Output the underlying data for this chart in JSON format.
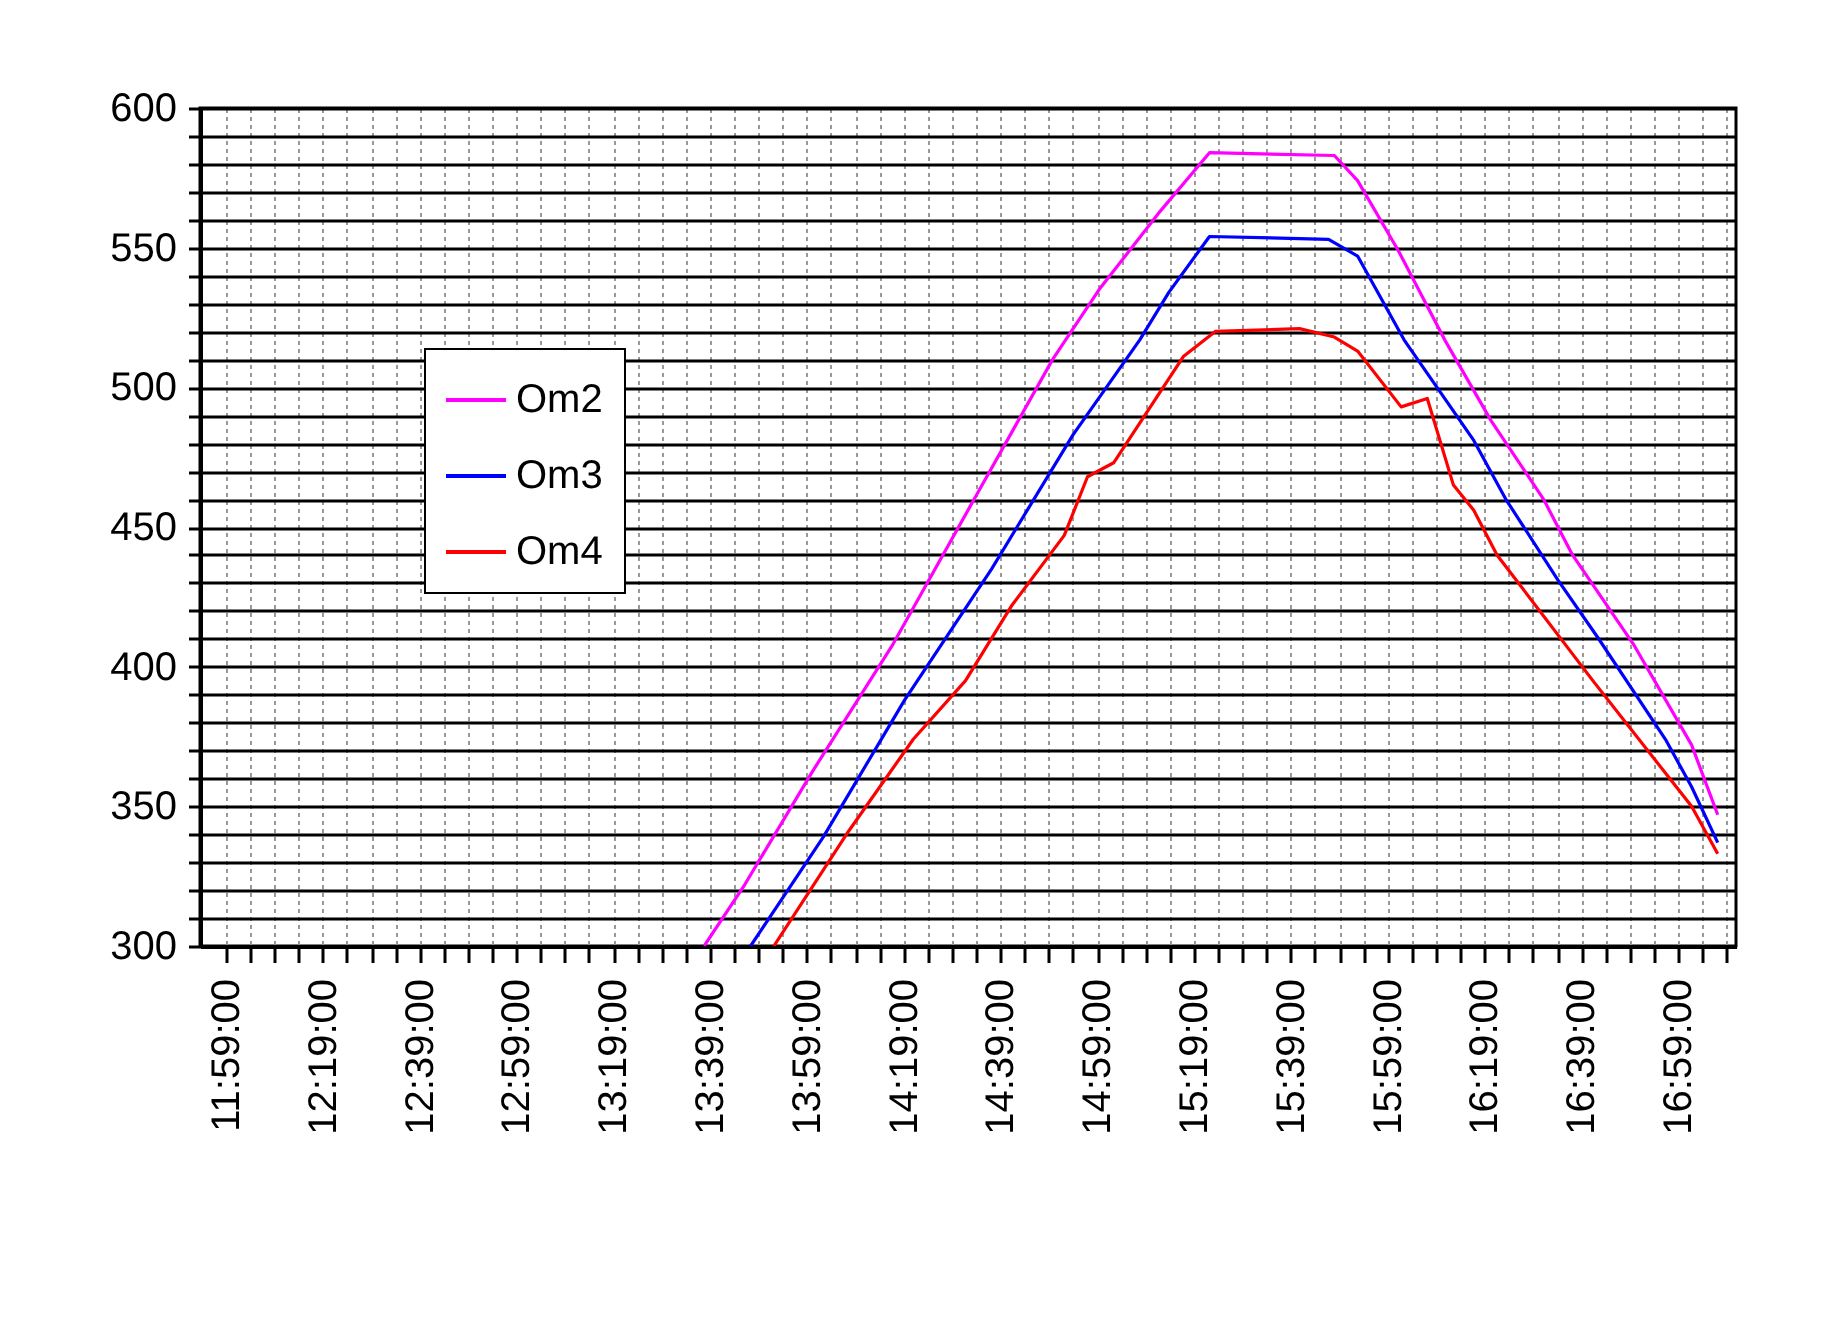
{
  "chart_data": {
    "type": "line",
    "xlim": [
      11.894,
      17.183
    ],
    "ylim": [
      300,
      600
    ],
    "xticks": [
      {
        "value": 11.9833,
        "label": "11:59:00"
      },
      {
        "value": 12.0667,
        "label": null
      },
      {
        "value": 12.15,
        "label": null
      },
      {
        "value": 12.2333,
        "label": null
      },
      {
        "value": 12.3167,
        "label": "12:19:00"
      },
      {
        "value": 12.4,
        "label": null
      },
      {
        "value": 12.4833,
        "label": null
      },
      {
        "value": 12.5667,
        "label": null
      },
      {
        "value": 12.65,
        "label": "12:39:00"
      },
      {
        "value": 12.7333,
        "label": null
      },
      {
        "value": 12.8167,
        "label": null
      },
      {
        "value": 12.9,
        "label": null
      },
      {
        "value": 12.9833,
        "label": "12:59:00"
      },
      {
        "value": 13.0667,
        "label": null
      },
      {
        "value": 13.15,
        "label": null
      },
      {
        "value": 13.2333,
        "label": null
      },
      {
        "value": 13.3167,
        "label": "13:19:00"
      },
      {
        "value": 13.4,
        "label": null
      },
      {
        "value": 13.4833,
        "label": null
      },
      {
        "value": 13.5667,
        "label": null
      },
      {
        "value": 13.65,
        "label": "13:39:00"
      },
      {
        "value": 13.7333,
        "label": null
      },
      {
        "value": 13.8167,
        "label": null
      },
      {
        "value": 13.9,
        "label": null
      },
      {
        "value": 13.9833,
        "label": "13:59:00"
      },
      {
        "value": 14.0667,
        "label": null
      },
      {
        "value": 14.15,
        "label": null
      },
      {
        "value": 14.2333,
        "label": null
      },
      {
        "value": 14.3167,
        "label": "14:19:00"
      },
      {
        "value": 14.4,
        "label": null
      },
      {
        "value": 14.4833,
        "label": null
      },
      {
        "value": 14.5667,
        "label": null
      },
      {
        "value": 14.65,
        "label": "14:39:00"
      },
      {
        "value": 14.7333,
        "label": null
      },
      {
        "value": 14.8167,
        "label": null
      },
      {
        "value": 14.9,
        "label": null
      },
      {
        "value": 14.9833,
        "label": "14:59:00"
      },
      {
        "value": 15.0667,
        "label": null
      },
      {
        "value": 15.15,
        "label": null
      },
      {
        "value": 15.2333,
        "label": null
      },
      {
        "value": 15.3167,
        "label": "15:19:00"
      },
      {
        "value": 15.4,
        "label": null
      },
      {
        "value": 15.4833,
        "label": null
      },
      {
        "value": 15.5667,
        "label": null
      },
      {
        "value": 15.65,
        "label": "15:39:00"
      },
      {
        "value": 15.7333,
        "label": null
      },
      {
        "value": 15.8167,
        "label": null
      },
      {
        "value": 15.9,
        "label": null
      },
      {
        "value": 15.9833,
        "label": "15:59:00"
      },
      {
        "value": 16.0667,
        "label": null
      },
      {
        "value": 16.15,
        "label": null
      },
      {
        "value": 16.2333,
        "label": null
      },
      {
        "value": 16.3167,
        "label": "16:19:00"
      },
      {
        "value": 16.4,
        "label": null
      },
      {
        "value": 16.4833,
        "label": null
      },
      {
        "value": 16.5667,
        "label": null
      },
      {
        "value": 16.65,
        "label": "16:39:00"
      },
      {
        "value": 16.7333,
        "label": null
      },
      {
        "value": 16.8167,
        "label": null
      },
      {
        "value": 16.9,
        "label": null
      },
      {
        "value": 16.9833,
        "label": "16:59:00"
      },
      {
        "value": 17.0667,
        "label": null
      },
      {
        "value": 17.15,
        "label": null
      }
    ],
    "yticks": [
      300,
      {
        "value": 310,
        "label": null
      },
      {
        "value": 320,
        "label": null
      },
      {
        "value": 330,
        "label": null
      },
      {
        "value": 340,
        "label": null
      },
      350,
      {
        "value": 360,
        "label": null
      },
      {
        "value": 370,
        "label": null
      },
      {
        "value": 380,
        "label": null
      },
      {
        "value": 390,
        "label": null
      },
      400,
      {
        "value": 410,
        "label": null
      },
      {
        "value": 420,
        "label": null
      },
      {
        "value": 430,
        "label": null
      },
      {
        "value": 440,
        "label": null
      },
      450,
      {
        "value": 460,
        "label": null
      },
      {
        "value": 470,
        "label": null
      },
      {
        "value": 480,
        "label": null
      },
      {
        "value": 490,
        "label": null
      },
      500,
      {
        "value": 510,
        "label": null
      },
      {
        "value": 520,
        "label": null
      },
      {
        "value": 530,
        "label": null
      },
      {
        "value": 540,
        "label": null
      },
      550,
      {
        "value": 560,
        "label": null
      },
      {
        "value": 570,
        "label": null
      },
      {
        "value": 580,
        "label": null
      },
      {
        "value": 590,
        "label": null
      },
      600
    ],
    "grid": true,
    "legend": "left",
    "marker": "none",
    "line_style": "solid",
    "series": [
      {
        "name": "Om2",
        "color": "#ff00ff",
        "x": [
          13.63,
          13.77,
          14.0,
          14.28,
          14.56,
          14.83,
          14.99,
          15.2,
          15.37,
          15.8,
          15.88,
          16.02,
          16.18,
          16.34,
          16.52,
          16.62,
          16.83,
          17.03,
          17.12
        ],
        "values": [
          300,
          322,
          362,
          408,
          460,
          510,
          535,
          563,
          584,
          583,
          574,
          549,
          517,
          488,
          460,
          440,
          408,
          372,
          347
        ]
      },
      {
        "name": "Om3",
        "color": "#0000ff",
        "x": [
          13.79,
          14.04,
          14.32,
          14.62,
          14.9,
          15.13,
          15.23,
          15.37,
          15.78,
          15.88,
          16.04,
          16.28,
          16.39,
          16.57,
          16.71,
          16.94,
          17.03,
          17.12
        ],
        "values": [
          300,
          339,
          388,
          435,
          483,
          517,
          534,
          554,
          553,
          547,
          517,
          481,
          460,
          431,
          410,
          374,
          357,
          337
        ]
      },
      {
        "name": "Om4",
        "color": "#ff0000",
        "x": [
          13.87,
          14.12,
          14.35,
          14.53,
          14.69,
          14.87,
          14.95,
          15.04,
          15.28,
          15.39,
          15.68,
          15.8,
          15.88,
          16.03,
          16.12,
          16.21,
          16.28,
          16.36,
          16.69,
          17.03,
          17.12
        ],
        "values": [
          300,
          340,
          374,
          395,
          422,
          447,
          468,
          473,
          511,
          520,
          521,
          518,
          513,
          493,
          496,
          465,
          456,
          440,
          395,
          350,
          333
        ]
      }
    ]
  }
}
